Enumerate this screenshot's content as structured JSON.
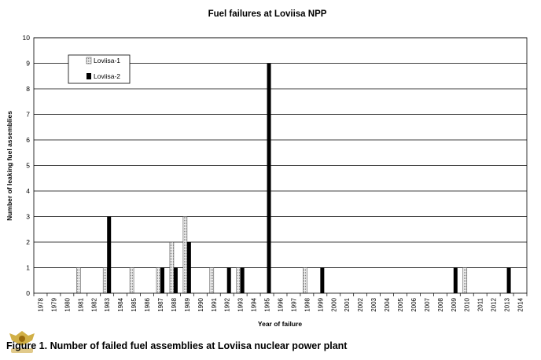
{
  "chart_data": {
    "type": "bar",
    "title": "Fuel failures at Loviisa NPP",
    "xlabel": "Year of failure",
    "ylabel": "Number of leaking fuel assemblies",
    "ylim": [
      0,
      10
    ],
    "yticks": [
      0,
      1,
      2,
      3,
      4,
      5,
      6,
      7,
      8,
      9,
      10
    ],
    "grid": "horizontal",
    "legend_position": "top-left",
    "categories": [
      "1978",
      "1979",
      "1980",
      "1981",
      "1982",
      "1983",
      "1984",
      "1985",
      "1986",
      "1987",
      "1988",
      "1989",
      "1990",
      "1991",
      "1992",
      "1993",
      "1994",
      "1995",
      "1996",
      "1997",
      "1998",
      "1999",
      "2000",
      "2001",
      "2002",
      "2003",
      "2004",
      "2005",
      "2006",
      "2007",
      "2008",
      "2009",
      "2010",
      "2011",
      "2012",
      "2013",
      "2014"
    ],
    "series": [
      {
        "name": "Loviisa-1",
        "color": "#d9d9d9",
        "pattern": "dotted-light",
        "values": [
          0,
          0,
          0,
          1,
          0,
          1,
          0,
          1,
          0,
          1,
          2,
          3,
          0,
          1,
          0,
          1,
          0,
          0,
          0,
          0,
          1,
          0,
          0,
          0,
          0,
          0,
          0,
          0,
          0,
          0,
          0,
          0,
          1,
          0,
          0,
          0,
          0
        ]
      },
      {
        "name": "Loviisa-2",
        "color": "#000000",
        "pattern": "solid",
        "values": [
          0,
          0,
          0,
          0,
          0,
          3,
          0,
          0,
          0,
          1,
          1,
          2,
          0,
          0,
          1,
          1,
          0,
          9,
          0,
          0,
          0,
          1,
          0,
          0,
          0,
          0,
          0,
          0,
          0,
          0,
          0,
          1,
          0,
          0,
          0,
          1,
          0
        ]
      }
    ]
  },
  "caption": "Figure 1.  Number of failed fuel assemblies at Loviisa nuclear power plant"
}
